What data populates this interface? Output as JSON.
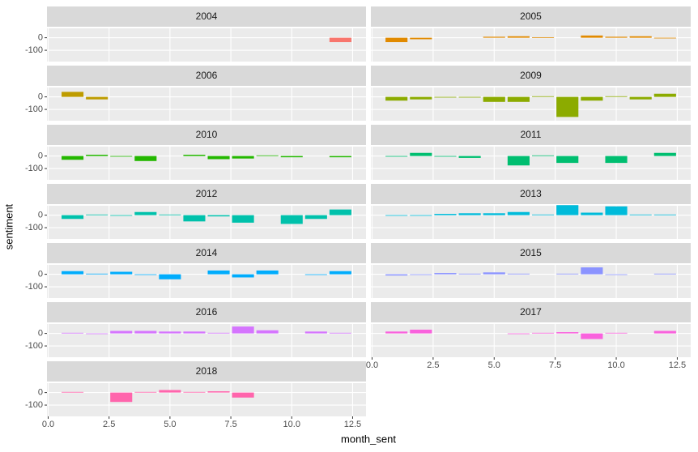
{
  "chart_data": {
    "type": "bar",
    "x_label": "month_sent",
    "y_label": "sentiment",
    "xlim": [
      -0.05,
      13.05
    ],
    "ylim": [
      -190,
      75
    ],
    "xticks": [
      {
        "value": 0,
        "label": "0.0"
      },
      2.5,
      {
        "value": 5,
        "label": "5.0"
      },
      7.5,
      {
        "value": 10,
        "label": "10.0"
      },
      12.5
    ],
    "yticks": [
      -100,
      0
    ],
    "grid": true,
    "panels": [
      {
        "title": "2004",
        "color": "#F8766D",
        "x": [
          12
        ],
        "values": [
          -35
        ]
      },
      {
        "title": "2005",
        "color": "#E18A00",
        "x": [
          1,
          2,
          5,
          6,
          7,
          9,
          10,
          11,
          12
        ],
        "values": [
          -35,
          -12,
          8,
          12,
          4,
          18,
          8,
          12,
          -3
        ]
      },
      {
        "title": "2006",
        "color": "#BE9C00",
        "x": [
          1,
          2
        ],
        "values": [
          40,
          -20
        ]
      },
      {
        "title": "2009",
        "color": "#8CAB00",
        "x": [
          1,
          2,
          3,
          4,
          5,
          6,
          7,
          8,
          9,
          10,
          11,
          12
        ],
        "values": [
          -30,
          -20,
          -5,
          -5,
          -40,
          -40,
          5,
          -160,
          -30,
          5,
          -20,
          25
        ]
      },
      {
        "title": "2010",
        "color": "#24B700",
        "x": [
          1,
          2,
          3,
          4,
          6,
          7,
          8,
          9,
          10,
          12
        ],
        "values": [
          -30,
          10,
          -5,
          -40,
          10,
          -25,
          -20,
          5,
          -10,
          -10
        ]
      },
      {
        "title": "2011",
        "color": "#00BE70",
        "x": [
          1,
          2,
          3,
          4,
          6,
          7,
          8,
          10,
          12
        ],
        "values": [
          -5,
          25,
          -5,
          -15,
          -75,
          5,
          -55,
          -55,
          25
        ]
      },
      {
        "title": "2012",
        "color": "#00C1AB",
        "x": [
          1,
          2,
          3,
          4,
          5,
          6,
          7,
          8,
          10,
          11,
          12
        ],
        "values": [
          -30,
          5,
          -5,
          25,
          5,
          -50,
          -10,
          -60,
          -70,
          -30,
          45
        ]
      },
      {
        "title": "2013",
        "color": "#00BBDA",
        "x": [
          1,
          2,
          3,
          4,
          5,
          6,
          7,
          8,
          9,
          10,
          11,
          12
        ],
        "values": [
          -5,
          -5,
          10,
          15,
          15,
          25,
          5,
          80,
          20,
          70,
          5,
          5
        ]
      },
      {
        "title": "2014",
        "color": "#00ACFC",
        "x": [
          1,
          2,
          3,
          4,
          5,
          7,
          8,
          9,
          11,
          12
        ],
        "values": [
          25,
          5,
          20,
          -5,
          -40,
          30,
          -25,
          30,
          -5,
          25
        ]
      },
      {
        "title": "2015",
        "color": "#8B93FF",
        "x": [
          1,
          2,
          3,
          4,
          5,
          6,
          8,
          9,
          10,
          12
        ],
        "values": [
          -10,
          -5,
          10,
          5,
          15,
          5,
          5,
          55,
          -5,
          5
        ]
      },
      {
        "title": "2016",
        "color": "#D575FE",
        "x": [
          1,
          2,
          3,
          4,
          5,
          6,
          7,
          8,
          9,
          11,
          12
        ],
        "values": [
          5,
          -5,
          20,
          20,
          15,
          15,
          5,
          55,
          25,
          15,
          5
        ]
      },
      {
        "title": "2017",
        "color": "#F962DD",
        "x": [
          1,
          2,
          6,
          7,
          8,
          9,
          10,
          12
        ],
        "values": [
          15,
          30,
          -5,
          5,
          10,
          -45,
          5,
          20
        ]
      },
      {
        "title": "2018",
        "color": "#FF65AC",
        "x": [
          1,
          3,
          4,
          5,
          6,
          7,
          8
        ],
        "values": [
          5,
          -75,
          5,
          20,
          5,
          10,
          -40
        ]
      }
    ]
  }
}
